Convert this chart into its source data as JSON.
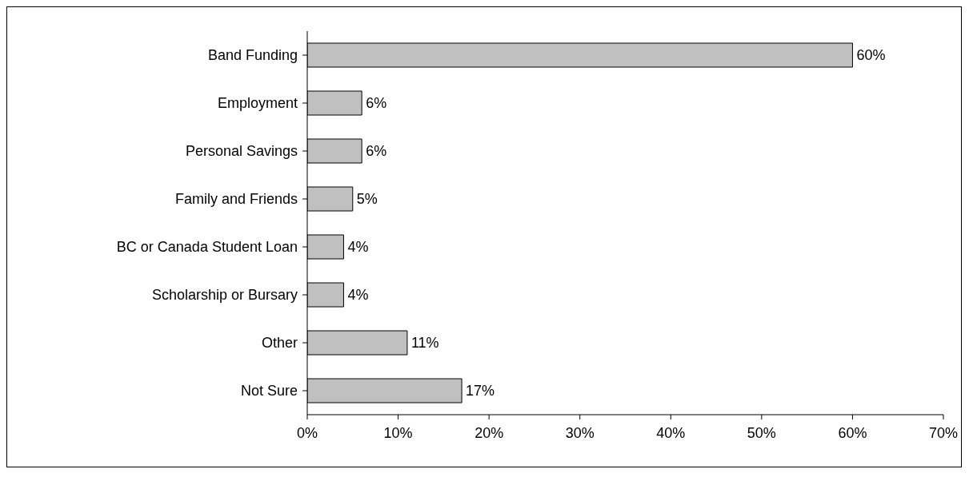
{
  "chart_data": {
    "type": "bar",
    "orientation": "horizontal",
    "categories": [
      "Band Funding",
      "Employment",
      "Personal Savings",
      "Family and Friends",
      "BC or Canada Student Loan",
      "Scholarship or Bursary",
      "Other",
      "Not Sure"
    ],
    "values": [
      60,
      6,
      6,
      5,
      4,
      4,
      11,
      17
    ],
    "value_labels": [
      "60%",
      "6%",
      "6%",
      "5%",
      "4%",
      "4%",
      "11%",
      "17%"
    ],
    "color": "#c0c0c0",
    "xlim": [
      0,
      70
    ],
    "xticks": [
      {
        "value": 0,
        "label": "0%"
      },
      {
        "value": 10,
        "label": "10%"
      },
      {
        "value": 20,
        "label": "20%"
      },
      {
        "value": 30,
        "label": "30%"
      },
      {
        "value": 40,
        "label": "40%"
      },
      {
        "value": 50,
        "label": "50%"
      },
      {
        "value": 60,
        "label": "60%"
      },
      {
        "value": 70,
        "label": "70%"
      }
    ],
    "grid": false,
    "legend": false
  }
}
